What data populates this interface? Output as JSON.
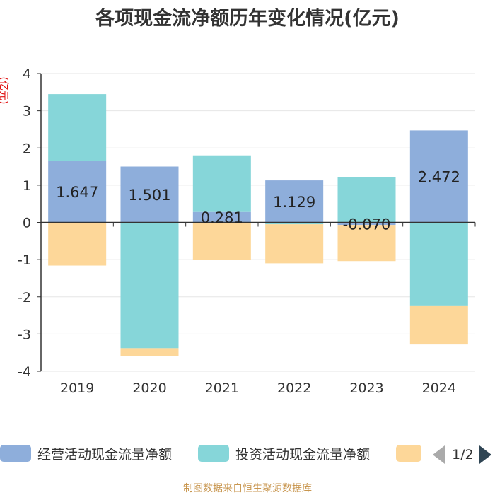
{
  "chart_data": {
    "type": "bar",
    "stacked": true,
    "title": "各项现金流净额历年变化情况(亿元)",
    "ylabel": "(亿元)",
    "categories": [
      "2019",
      "2020",
      "2021",
      "2022",
      "2023",
      "2024"
    ],
    "ylim": [
      -4,
      4
    ],
    "yticks": [
      "4",
      "3",
      "2",
      "1",
      "0",
      "-1",
      "-2",
      "-3",
      "-4"
    ],
    "grid": true,
    "series": [
      {
        "name": "经营活动现金流量净额",
        "color": "#8eaedb",
        "values": [
          1.647,
          1.501,
          0.281,
          1.129,
          -0.07,
          2.472
        ],
        "labels": [
          "1.647",
          "1.501",
          "0.281",
          "1.129",
          "-0.070",
          "2.472"
        ]
      },
      {
        "name": "投资活动现金流量净额",
        "color": "#86d6d9",
        "values": [
          1.8,
          -3.38,
          1.52,
          -0.05,
          1.22,
          -2.25
        ]
      },
      {
        "name": "",
        "color": "#fdd799",
        "values": [
          -1.16,
          -0.22,
          -1.0,
          -1.05,
          -0.97,
          -1.03
        ]
      }
    ],
    "legend_position": "bottom"
  },
  "legend": {
    "page": "1/2"
  },
  "source": "制图数据来自恒生聚源数据库"
}
